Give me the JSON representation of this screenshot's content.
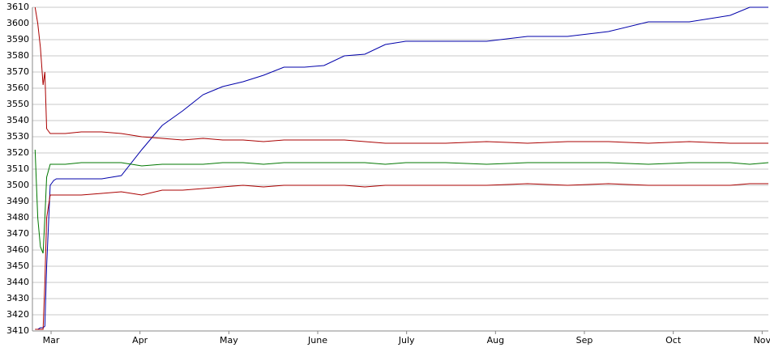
{
  "chart_data": {
    "type": "line",
    "x": [
      -0.18,
      -0.15,
      -0.12,
      -0.09,
      -0.07,
      -0.05,
      -0.01,
      0.03,
      0.06,
      0.16,
      0.34,
      0.57,
      0.79,
      1.02,
      1.25,
      1.48,
      1.71,
      1.93,
      2.16,
      2.39,
      2.62,
      2.85,
      3.07,
      3.3,
      3.53,
      3.76,
      3.99,
      4.44,
      4.9,
      5.36,
      5.81,
      6.27,
      6.72,
      7.18,
      7.64,
      7.86,
      8.07
    ],
    "series": [
      {
        "color": "#0000aa",
        "values": [
          3411,
          3411,
          3412,
          3412,
          3413,
          3450,
          3500,
          3503,
          3504,
          3504,
          3504,
          3504,
          3506,
          3522,
          3537,
          3546,
          3556,
          3561,
          3564,
          3568,
          3573,
          3573,
          3574,
          3580,
          3581,
          3587,
          3589,
          3589,
          3589,
          3592,
          3592,
          3595,
          3601,
          3601,
          3605,
          3610,
          3610
        ]
      },
      {
        "color": "#aa0000",
        "values": [
          3610,
          3600,
          3585,
          3562,
          3570,
          3535,
          3532,
          3532,
          3532,
          3532,
          3533,
          3533,
          3532,
          3530,
          3529,
          3528,
          3529,
          3528,
          3528,
          3527,
          3528,
          3528,
          3528,
          3528,
          3527,
          3526,
          3526,
          3526,
          3527,
          3526,
          3527,
          3527,
          3526,
          3527,
          3526,
          3526,
          3526
        ]
      },
      {
        "color": "#007700",
        "values": [
          3522,
          3480,
          3462,
          3458,
          3480,
          3505,
          3513,
          3513,
          3513,
          3513,
          3514,
          3514,
          3514,
          3512,
          3513,
          3513,
          3513,
          3514,
          3514,
          3513,
          3514,
          3514,
          3514,
          3514,
          3514,
          3513,
          3514,
          3514,
          3513,
          3514,
          3514,
          3514,
          3513,
          3514,
          3514,
          3513,
          3514
        ]
      },
      {
        "color": "#aa0000",
        "values": [
          3411,
          3411,
          3411,
          3411,
          3440,
          3480,
          3494,
          3494,
          3494,
          3494,
          3494,
          3495,
          3496,
          3494,
          3497,
          3497,
          3498,
          3499,
          3500,
          3499,
          3500,
          3500,
          3500,
          3500,
          3499,
          3500,
          3500,
          3500,
          3500,
          3501,
          3500,
          3501,
          3500,
          3500,
          3500,
          3501,
          3501
        ]
      }
    ],
    "xlim": [
      -0.21,
      8.07
    ],
    "xticks": [
      {
        "value": 0,
        "label": "Mar"
      },
      {
        "value": 1,
        "label": "Apr"
      },
      {
        "value": 2,
        "label": "May"
      },
      {
        "value": 3,
        "label": "June"
      },
      {
        "value": 4,
        "label": "July"
      },
      {
        "value": 5,
        "label": "Aug"
      },
      {
        "value": 6,
        "label": "Sep"
      },
      {
        "value": 7,
        "label": "Oct"
      },
      {
        "value": 8,
        "label": "Nov"
      }
    ],
    "ylim": [
      3410,
      3610
    ],
    "yticks": [
      3410,
      3420,
      3430,
      3440,
      3450,
      3460,
      3470,
      3480,
      3490,
      3500,
      3510,
      3520,
      3530,
      3540,
      3550,
      3560,
      3570,
      3580,
      3590,
      3600,
      3610
    ],
    "grid": true
  }
}
